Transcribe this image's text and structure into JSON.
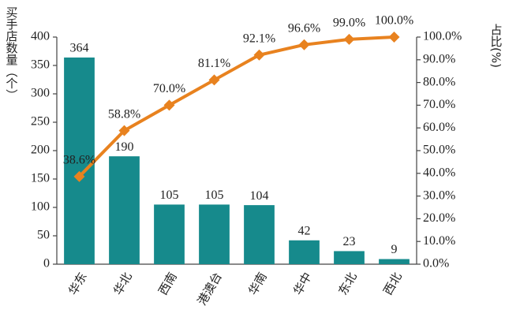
{
  "chart_data": {
    "type": "bar",
    "y_label": "买手店数量（个）",
    "y2_label": "占比(%)",
    "categories": [
      "华东",
      "华北",
      "西南",
      "港澳台",
      "华南",
      "华中",
      "东北",
      "西北"
    ],
    "series": [
      {
        "type": "bar",
        "color": "#168a8c",
        "values": [
          364,
          190,
          105,
          105,
          104,
          42,
          23,
          9
        ]
      },
      {
        "type": "line",
        "axis": "y2",
        "color": "#e8821f",
        "values": [
          38.6,
          58.8,
          70.0,
          81.1,
          92.1,
          96.6,
          99.0,
          100.0
        ],
        "value_labels": [
          "38.6%",
          "58.8%",
          "70.0%",
          "81.1%",
          "92.1%",
          "96.6%",
          "99.0%",
          "100.0%"
        ]
      }
    ],
    "ylim": [
      0,
      400
    ],
    "yticks": [
      0,
      50,
      100,
      150,
      200,
      250,
      300,
      350,
      400
    ],
    "y2lim": [
      0,
      100
    ],
    "y2ticks": [
      {
        "value": 0,
        "label": "0.0%"
      },
      {
        "value": 10,
        "label": "10.0%"
      },
      {
        "value": 20,
        "label": "20.0%"
      },
      {
        "value": 30,
        "label": "30.0%"
      },
      {
        "value": 40,
        "label": "40.0%"
      },
      {
        "value": 50,
        "label": "50.0%"
      },
      {
        "value": 60,
        "label": "60.0%"
      },
      {
        "value": 70,
        "label": "70.0%"
      },
      {
        "value": 80,
        "label": "80.0%"
      },
      {
        "value": 90,
        "label": "90.0%"
      },
      {
        "value": 100,
        "label": "100.0%"
      }
    ]
  }
}
